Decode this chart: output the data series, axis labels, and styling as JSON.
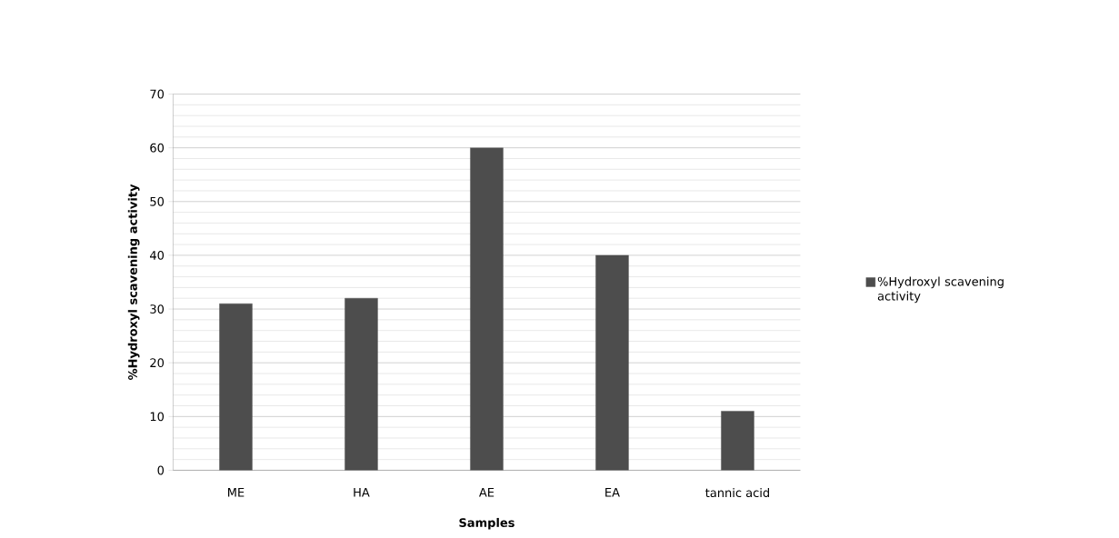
{
  "chart_data": {
    "type": "bar",
    "xlabel": "Samples",
    "ylabel": "%Hydroxyl scavening activity",
    "categories": [
      "ME",
      "HA",
      "AE",
      "EA",
      "tannic acid"
    ],
    "series": [
      {
        "name": "%Hydroxyl scavening activity",
        "color": "#4d4d4d",
        "values": [
          31,
          32,
          60,
          40,
          11
        ]
      }
    ],
    "ylim": [
      0,
      70
    ],
    "yticks": [
      0,
      10,
      20,
      30,
      40,
      50,
      60,
      70
    ],
    "grid": "y",
    "legend": "right"
  }
}
